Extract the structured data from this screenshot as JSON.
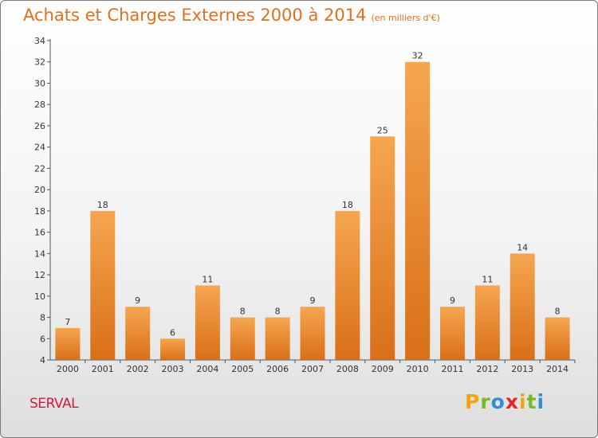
{
  "header": {
    "title": "Achats et Charges Externes 2000 à 2014",
    "unit": "(en milliers d'€)"
  },
  "footer": {
    "commune": "SERVAL",
    "logo_letters": [
      "P",
      "r",
      "o",
      "x",
      "i",
      "t",
      "i"
    ],
    "logo_colors": [
      "#f2a20c",
      "#79b829",
      "#2f8fd6",
      "#e2262a",
      "#f2a20c",
      "#79b829",
      "#2f8fd6"
    ]
  },
  "colors": {
    "title": "#e0701e",
    "commune": "#d51b3d",
    "bar_light": "#f6a650",
    "bar_dark": "#d96f18"
  },
  "chart_data": {
    "type": "bar",
    "title": "Achats et Charges Externes 2000 à 2014",
    "subtitle": "(en milliers d'€)",
    "categories": [
      "2000",
      "2001",
      "2002",
      "2003",
      "2004",
      "2005",
      "2006",
      "2007",
      "2008",
      "2009",
      "2010",
      "2011",
      "2012",
      "2013",
      "2014"
    ],
    "values": [
      7,
      18,
      9,
      6,
      11,
      8,
      8,
      9,
      18,
      25,
      32,
      9,
      11,
      14,
      8
    ],
    "ylim": [
      4,
      34
    ],
    "yticks": [
      4,
      6,
      8,
      10,
      12,
      14,
      16,
      18,
      20,
      22,
      24,
      26,
      28,
      30,
      32,
      34
    ],
    "grid": false,
    "legend": "none"
  }
}
